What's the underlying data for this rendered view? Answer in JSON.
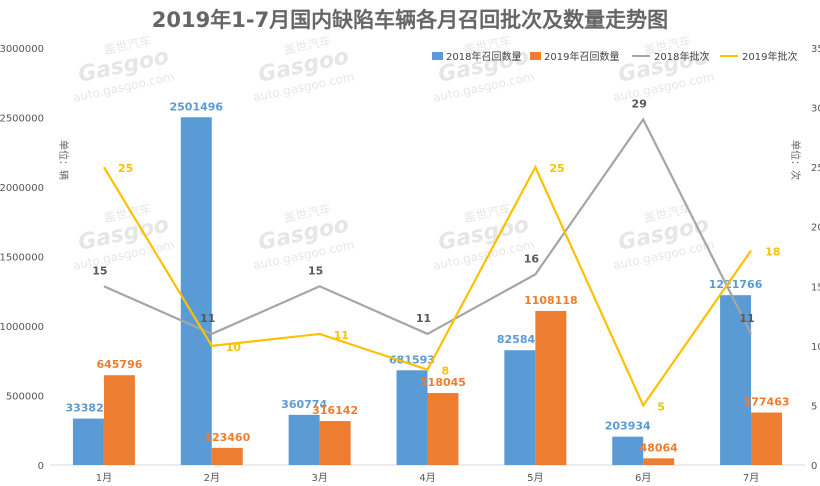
{
  "title": "2019年1-7月国内缺陷车辆各月召回批次及数量走势图",
  "watermark": {
    "brand": "Gasgoo",
    "cn": "盖世汽车",
    "url": "auto.gasgoo.com"
  },
  "chart_data": {
    "type": "bar",
    "title": "2019年1-7月国内缺陷车辆各月召回批次及数量走势图",
    "categories": [
      "1月",
      "2月",
      "3月",
      "4月",
      "5月",
      "6月",
      "7月"
    ],
    "y_left": {
      "unit_label": "单位：辆",
      "range": [
        0,
        3000000
      ],
      "ticks": [
        "0",
        "500000",
        "1000000",
        "1500000",
        "2000000",
        "2500000",
        "3000000"
      ]
    },
    "y_right": {
      "unit_label": "单位：次",
      "range": [
        0,
        35
      ],
      "ticks": [
        "0",
        "5",
        "10",
        "15",
        "20",
        "25",
        "30",
        "35"
      ]
    },
    "legend_position": "top-right",
    "grid": false,
    "series": [
      {
        "name": "2018年召回数量",
        "type": "bar",
        "axis": "left",
        "color": "#5b9bd5",
        "values": [
          333823,
          2501496,
          360774,
          681593,
          825846,
          203934,
          1221766
        ]
      },
      {
        "name": "2019年召回数量",
        "type": "bar",
        "axis": "left",
        "color": "#ed7d31",
        "values": [
          645796,
          123460,
          316142,
          518045,
          1108118,
          48064,
          377463
        ]
      },
      {
        "name": "2018年批次",
        "type": "line",
        "axis": "right",
        "color": "#a5a5a5",
        "values": [
          15,
          11,
          15,
          11,
          16,
          29,
          11
        ]
      },
      {
        "name": "2019年批次",
        "type": "line",
        "axis": "right",
        "color": "#ffc000",
        "values": [
          25,
          10,
          11,
          8,
          25,
          5,
          18
        ]
      }
    ]
  }
}
